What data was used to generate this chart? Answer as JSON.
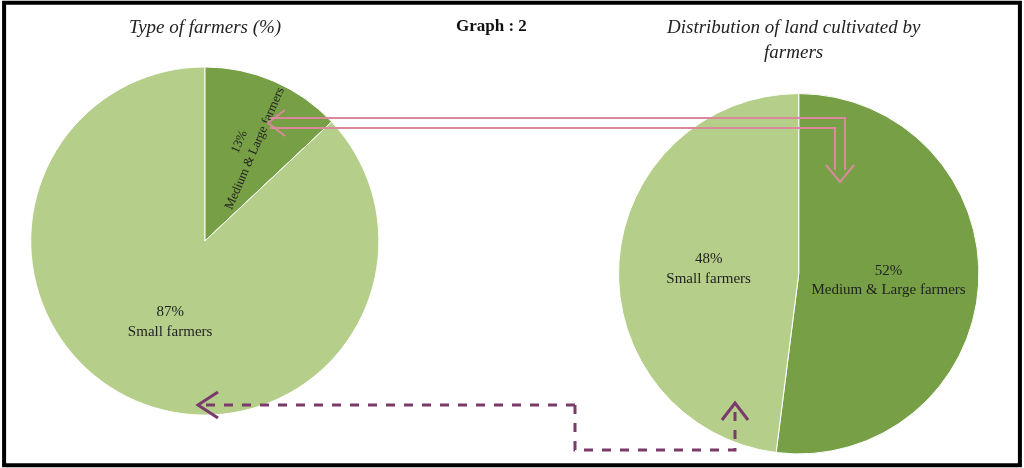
{
  "chart_data": [
    {
      "type": "pie",
      "title": "Type of farmers (%)",
      "annotations": [
        "Graph : 2"
      ],
      "categories": [
        "Medium & Large farmers",
        "Small farmers"
      ],
      "values": [
        13,
        87
      ],
      "colors": [
        "#77a046",
        "#b5cf8a"
      ],
      "value_labels": [
        "13%",
        "87%"
      ]
    },
    {
      "type": "pie",
      "title": "Distribution of land cultivated by farmers",
      "categories": [
        "Medium & Large farmers",
        "Small farmers"
      ],
      "values": [
        52,
        48
      ],
      "colors": [
        "#77a046",
        "#b5cf8a"
      ],
      "value_labels": [
        "52%",
        "48%"
      ]
    }
  ]
}
